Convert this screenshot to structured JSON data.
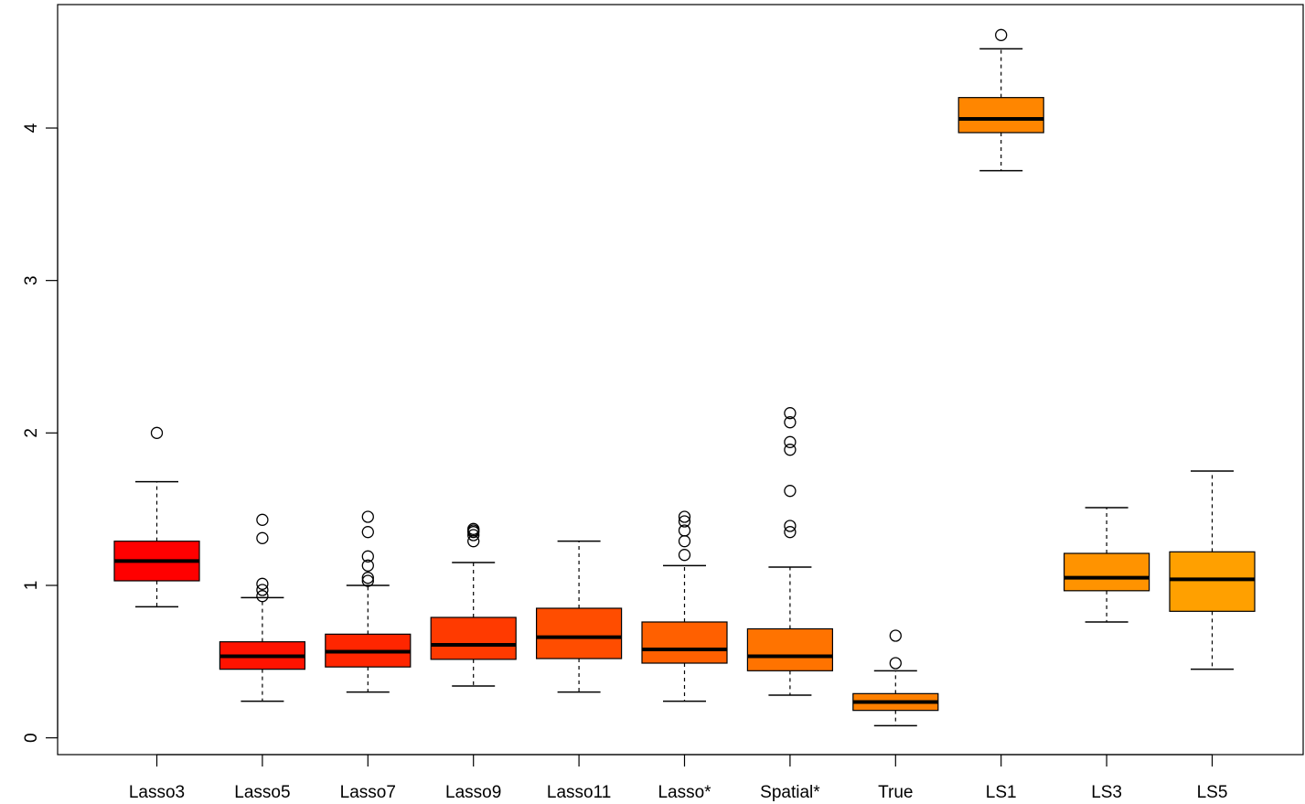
{
  "chart_data": {
    "type": "boxplot",
    "title": "",
    "xlabel": "",
    "ylabel": "",
    "ylim": [
      -0.11,
      4.81
    ],
    "y_ticks": [
      "0",
      "1",
      "2",
      "3",
      "4"
    ],
    "grid": false,
    "categories": [
      "Lasso3",
      "Lasso5",
      "Lasso7",
      "Lasso9",
      "Lasso11",
      "Lasso*",
      "Spatial*",
      "True",
      "LS1",
      "LS3",
      "LS5"
    ],
    "boxes": [
      {
        "label": "Lasso3",
        "color": "#FF0000",
        "min": 0.86,
        "q1": 1.03,
        "median": 1.16,
        "q3": 1.29,
        "max": 1.68,
        "outliers": [
          2.0
        ]
      },
      {
        "label": "Lasso5",
        "color": "#FF1300",
        "min": 0.24,
        "q1": 0.45,
        "median": 0.535,
        "q3": 0.63,
        "max": 0.92,
        "outliers": [
          0.93,
          0.97,
          1.01,
          1.31,
          1.43
        ]
      },
      {
        "label": "Lasso7",
        "color": "#FF2600",
        "min": 0.3,
        "q1": 0.465,
        "median": 0.565,
        "q3": 0.68,
        "max": 1.0,
        "outliers": [
          1.03,
          1.05,
          1.13,
          1.19,
          1.35,
          1.45
        ]
      },
      {
        "label": "Lasso9",
        "color": "#FF3A00",
        "min": 0.34,
        "q1": 0.515,
        "median": 0.61,
        "q3": 0.79,
        "max": 1.15,
        "outliers": [
          1.29,
          1.33,
          1.35,
          1.36,
          1.37
        ]
      },
      {
        "label": "Lasso11",
        "color": "#FF4D00",
        "min": 0.3,
        "q1": 0.52,
        "median": 0.66,
        "q3": 0.85,
        "max": 1.29,
        "outliers": []
      },
      {
        "label": "Lasso*",
        "color": "#FF6000",
        "min": 0.24,
        "q1": 0.49,
        "median": 0.58,
        "q3": 0.76,
        "max": 1.13,
        "outliers": [
          1.2,
          1.29,
          1.36,
          1.42,
          1.45
        ]
      },
      {
        "label": "Spatial*",
        "color": "#FF7300",
        "min": 0.28,
        "q1": 0.44,
        "median": 0.535,
        "q3": 0.715,
        "max": 1.12,
        "outliers": [
          1.35,
          1.39,
          1.62,
          1.89,
          1.94,
          2.07,
          2.13
        ]
      },
      {
        "label": "True",
        "color": "#FF8000",
        "min": 0.08,
        "q1": 0.18,
        "median": 0.235,
        "q3": 0.29,
        "max": 0.44,
        "outliers": [
          0.49,
          0.67
        ]
      },
      {
        "label": "LS1",
        "color": "#FF8600",
        "min": 3.72,
        "q1": 3.97,
        "median": 4.06,
        "q3": 4.2,
        "max": 4.52,
        "outliers": [
          4.61
        ]
      },
      {
        "label": "LS3",
        "color": "#FF9300",
        "min": 0.76,
        "q1": 0.965,
        "median": 1.05,
        "q3": 1.21,
        "max": 1.51,
        "outliers": []
      },
      {
        "label": "LS5",
        "color": "#FFA000",
        "min": 0.45,
        "q1": 0.83,
        "median": 1.04,
        "q3": 1.22,
        "max": 1.75,
        "outliers": []
      }
    ]
  }
}
